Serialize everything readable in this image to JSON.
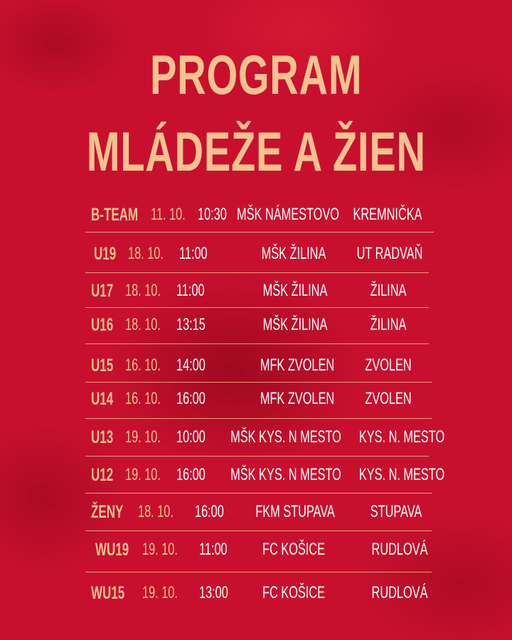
{
  "title": {
    "line1": "PROGRAM",
    "line2": "MLÁDEŽE A ŽIEN"
  },
  "colors": {
    "background": "#c8102e",
    "accent": "#f2c28f",
    "text": "#ffffff"
  },
  "matches": [
    {
      "team": "B-TEAM",
      "date": "11. 10.",
      "time": "10:30",
      "club": "MŠK NÁMESTOVO",
      "venue": "KREMNIČKA"
    },
    {
      "team": "U19",
      "date": "18. 10.",
      "time": "11:00",
      "club": "MŠK ŽILINA",
      "venue": "UT RADVAŇ"
    },
    {
      "team": "U17",
      "date": "18. 10.",
      "time": "11:00",
      "club": "MŠK ŽILINA",
      "venue": "ŽILINA"
    },
    {
      "team": "U16",
      "date": "18. 10.",
      "time": "13:15",
      "club": "MŠK ŽILINA",
      "venue": "ŽILINA"
    },
    {
      "team": "U15",
      "date": "16. 10.",
      "time": "14:00",
      "club": "MFK ZVOLEN",
      "venue": "ZVOLEN"
    },
    {
      "team": "U14",
      "date": "16. 10.",
      "time": "16:00",
      "club": "MFK ZVOLEN",
      "venue": "ZVOLEN"
    },
    {
      "team": "U13",
      "date": "19. 10.",
      "time": "10:00",
      "club": "MŠK KYS. N MESTO",
      "venue": "KYS. N. MESTO"
    },
    {
      "team": "U12",
      "date": "19. 10.",
      "time": "16:00",
      "club": "MŠK KYS. N MESTO",
      "venue": "KYS. N. MESTO"
    },
    {
      "team": "ŽENY",
      "date": "18. 10.",
      "time": "16:00",
      "club": "FKM STUPAVA",
      "venue": "STUPAVA"
    },
    {
      "team": "WU19",
      "date": "19. 10.",
      "time": "11:00",
      "club": "FC KOŠICE",
      "venue": "RUDLOVÁ"
    },
    {
      "team": "WU15",
      "date": "19. 10.",
      "time": "13:00",
      "club": "FC KOŠICE",
      "venue": "RUDLOVÁ"
    }
  ]
}
